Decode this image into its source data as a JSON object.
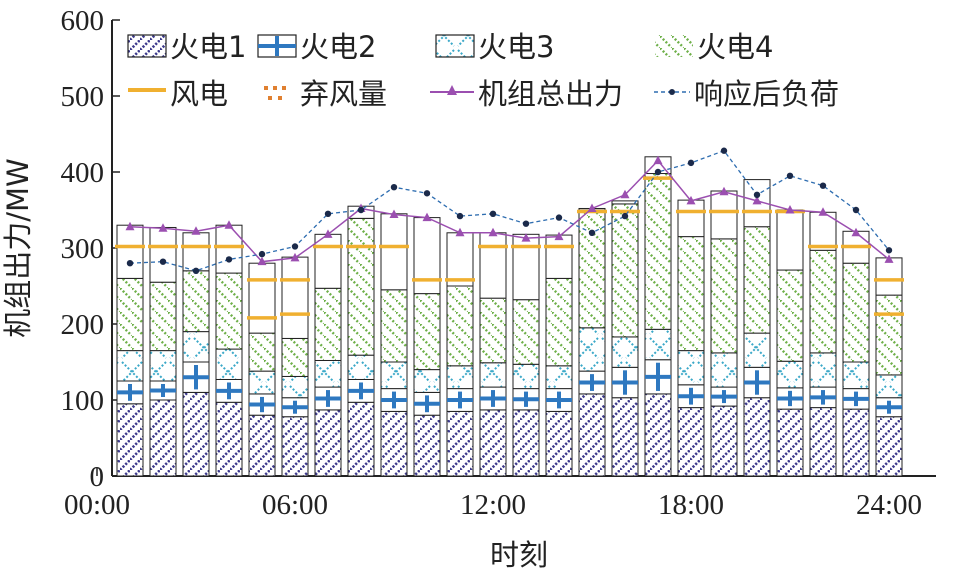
{
  "chart_data": {
    "type": "bar",
    "subtype": "stacked-bar-with-lines",
    "xlabel": "时刻",
    "ylabel": "机组出力/MW",
    "ylim": [
      0,
      600
    ],
    "yticks": [
      0,
      100,
      200,
      300,
      400,
      500,
      600
    ],
    "xticks": [
      "00:00",
      "06:00",
      "12:00",
      "18:00",
      "24:00"
    ],
    "xrange": [
      0,
      24
    ],
    "x": [
      1,
      2,
      3,
      4,
      5,
      6,
      7,
      8,
      9,
      10,
      11,
      12,
      13,
      14,
      15,
      16,
      17,
      18,
      19,
      20,
      21,
      22,
      23,
      24
    ],
    "legend": [
      "火电1",
      "火电2",
      "火电3",
      "火电4",
      "风电",
      "弃风量",
      "机组总出力",
      "响应后负荷"
    ],
    "colors": {
      "g1": "#3d3a8c",
      "g2": "#2e78c0",
      "g3": "#3aa8c8",
      "g4": "#6fb04a",
      "wind": "#f0b030",
      "curtail": "#e08030",
      "total": "#9b4fb0",
      "load": "#2e6db0",
      "load_marker": "#1b2a4a"
    },
    "stack_series": [
      {
        "name": "火电1",
        "values": [
          95,
          100,
          110,
          97,
          80,
          78,
          87,
          97,
          85,
          80,
          85,
          87,
          87,
          85,
          108,
          103,
          108,
          90,
          92,
          103,
          88,
          90,
          88,
          78
        ]
      },
      {
        "name": "火电2",
        "values": [
          30,
          25,
          40,
          30,
          28,
          25,
          30,
          30,
          30,
          30,
          30,
          30,
          28,
          30,
          30,
          40,
          45,
          30,
          25,
          40,
          28,
          27,
          27,
          25
        ]
      },
      {
        "name": "火电3",
        "values": [
          40,
          40,
          40,
          40,
          30,
          28,
          35,
          32,
          35,
          30,
          30,
          32,
          32,
          30,
          57,
          40,
          40,
          45,
          45,
          45,
          35,
          45,
          35,
          30
        ]
      },
      {
        "name": "火电4",
        "values": [
          95,
          90,
          80,
          100,
          50,
          50,
          95,
          180,
          95,
          100,
          105,
          85,
          85,
          115,
          155,
          175,
          205,
          150,
          150,
          140,
          120,
          135,
          130,
          105
        ]
      }
    ],
    "bar_tops": [
      330,
      327,
      320,
      330,
      280,
      288,
      318,
      355,
      345,
      340,
      320,
      320,
      318,
      317,
      352,
      362,
      420,
      363,
      375,
      390,
      350,
      347,
      322,
      287
    ],
    "wind": [
      302,
      302,
      302,
      302,
      258,
      258,
      302,
      302,
      302,
      258,
      258,
      302,
      302,
      302,
      348,
      348,
      392,
      348,
      348,
      348,
      348,
      302,
      302,
      258
    ],
    "curtail": [
      0,
      0,
      0,
      0,
      50,
      45,
      0,
      0,
      0,
      0,
      0,
      0,
      0,
      0,
      0,
      0,
      0,
      0,
      0,
      0,
      0,
      0,
      0,
      45
    ],
    "total_output": [
      328,
      326,
      322,
      330,
      282,
      287,
      318,
      352,
      344,
      340,
      320,
      320,
      313,
      315,
      352,
      370,
      415,
      362,
      374,
      362,
      350,
      347,
      320,
      285
    ],
    "response_load": [
      280,
      282,
      270,
      285,
      292,
      302,
      345,
      350,
      380,
      372,
      342,
      345,
      332,
      340,
      320,
      342,
      400,
      412,
      428,
      370,
      395,
      382,
      350,
      297
    ]
  }
}
